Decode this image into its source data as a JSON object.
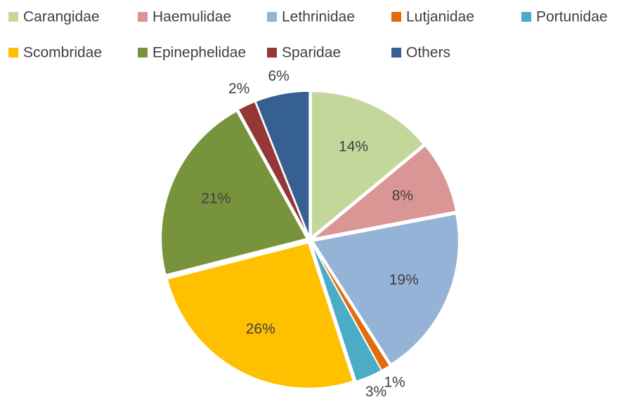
{
  "chart_data": {
    "type": "pie",
    "categories": [
      "Carangidae",
      "Haemulidae",
      "Lethrinidae",
      "Lutjanidae",
      "Portunidae",
      "Scombridae",
      "Epinephelidae",
      "Sparidae",
      "Others"
    ],
    "values": [
      14,
      8,
      19,
      1,
      3,
      26,
      21,
      2,
      6
    ],
    "value_labels": [
      "14%",
      "8%",
      "19%",
      "1%",
      "3%",
      "26%",
      "21%",
      "2%",
      "6%"
    ],
    "colors": [
      "#c4d79b",
      "#da9694",
      "#95b3d7",
      "#e26b0a",
      "#4bacc6",
      "#ffc000",
      "#77933c",
      "#953735",
      "#366092"
    ],
    "legend": "top"
  }
}
